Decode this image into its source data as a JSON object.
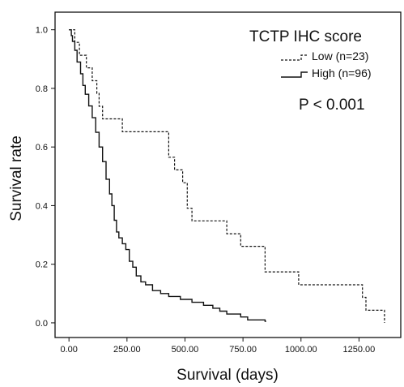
{
  "chart_data": {
    "type": "line",
    "title": "",
    "xlabel": "Survival (days)",
    "ylabel": "Survival rate",
    "xlim": [
      -60,
      1430
    ],
    "ylim": [
      -0.05,
      1.06
    ],
    "xticks": [
      0,
      250,
      500,
      750,
      1000,
      1250
    ],
    "xtick_labels": [
      "0.00",
      "250.00",
      "500.00",
      "750.00",
      "1000.00",
      "1250.00"
    ],
    "yticks": [
      0,
      0.2,
      0.4,
      0.6,
      0.8,
      1.0
    ],
    "ytick_labels": [
      "0.0",
      "0.2",
      "0.4",
      "0.6",
      "0.8",
      "1.0"
    ],
    "grid": false,
    "legend": {
      "title": "TCTP IHC score",
      "position": "top-right"
    },
    "annotation": "P < 0.001",
    "series": [
      {
        "name": "Low (n=23)",
        "style": "dashed",
        "x": [
          0,
          25,
          45,
          75,
          100,
          120,
          130,
          145,
          165,
          185,
          230,
          250,
          285,
          430,
          455,
          490,
          510,
          530,
          550,
          595,
          680,
          740,
          795,
          845,
          990,
          1265,
          1280,
          1305,
          1360,
          1360
        ],
        "y": [
          1.0,
          0.957,
          0.913,
          0.87,
          0.826,
          0.783,
          0.739,
          0.696,
          0.696,
          0.696,
          0.652,
          0.652,
          0.652,
          0.565,
          0.522,
          0.478,
          0.391,
          0.348,
          0.348,
          0.348,
          0.304,
          0.261,
          0.261,
          0.174,
          0.13,
          0.087,
          0.043,
          0.043,
          0.0,
          0.0
        ]
      },
      {
        "name": "High (n=96)",
        "style": "solid",
        "x": [
          0,
          10,
          15,
          25,
          35,
          50,
          60,
          70,
          85,
          100,
          115,
          130,
          145,
          160,
          175,
          185,
          195,
          205,
          215,
          230,
          245,
          260,
          275,
          290,
          310,
          330,
          360,
          395,
          430,
          480,
          530,
          580,
          620,
          650,
          680,
          710,
          740,
          770,
          800,
          845,
          850
        ],
        "y": [
          1.0,
          0.98,
          0.96,
          0.93,
          0.89,
          0.85,
          0.81,
          0.78,
          0.74,
          0.7,
          0.65,
          0.6,
          0.55,
          0.49,
          0.44,
          0.4,
          0.35,
          0.31,
          0.29,
          0.27,
          0.25,
          0.21,
          0.19,
          0.16,
          0.14,
          0.13,
          0.11,
          0.1,
          0.09,
          0.08,
          0.07,
          0.06,
          0.05,
          0.04,
          0.03,
          0.03,
          0.02,
          0.01,
          0.01,
          0.005,
          0.005
        ]
      }
    ]
  }
}
